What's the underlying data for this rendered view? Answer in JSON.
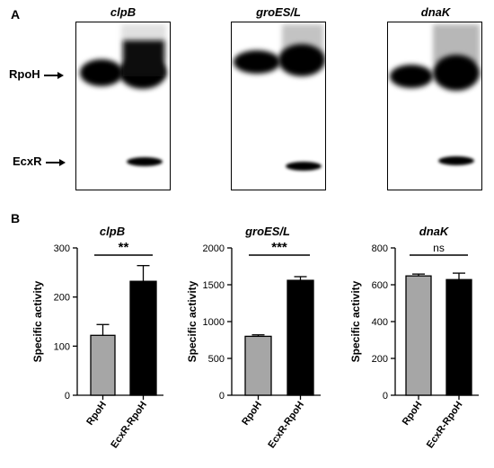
{
  "panel_a": {
    "letter": "A",
    "blots": [
      {
        "gene": "clpB"
      },
      {
        "gene": "groES/L"
      },
      {
        "gene": "dnaK"
      }
    ],
    "band_labels": [
      "RpoH",
      "EcxR"
    ]
  },
  "panel_b": {
    "letter": "B"
  },
  "chart_data": [
    {
      "type": "bar",
      "title": "clpB",
      "ylabel": "Specific activity",
      "categories": [
        "RpoH",
        "EcxR-RpoH"
      ],
      "values": [
        122,
        232
      ],
      "errors": [
        22,
        32
      ],
      "ylim": [
        0,
        300
      ],
      "yticks": [
        0,
        100,
        200,
        300
      ],
      "significance": "**",
      "colors": [
        "#a6a6a6",
        "#000000"
      ]
    },
    {
      "type": "bar",
      "title": "groES/L",
      "ylabel": "Specific activity",
      "categories": [
        "RpoH",
        "EcxR-RpoH"
      ],
      "values": [
        800,
        1560
      ],
      "errors": [
        20,
        50
      ],
      "ylim": [
        0,
        2000
      ],
      "yticks": [
        0,
        500,
        1000,
        1500,
        2000
      ],
      "significance": "***",
      "colors": [
        "#a6a6a6",
        "#000000"
      ]
    },
    {
      "type": "bar",
      "title": "dnaK",
      "ylabel": "Specific activity",
      "categories": [
        "RpoH",
        "EcxR-RpoH"
      ],
      "values": [
        648,
        628
      ],
      "errors": [
        10,
        35
      ],
      "ylim": [
        0,
        800
      ],
      "yticks": [
        0,
        200,
        400,
        600,
        800
      ],
      "significance": "ns",
      "colors": [
        "#a6a6a6",
        "#000000"
      ]
    }
  ]
}
